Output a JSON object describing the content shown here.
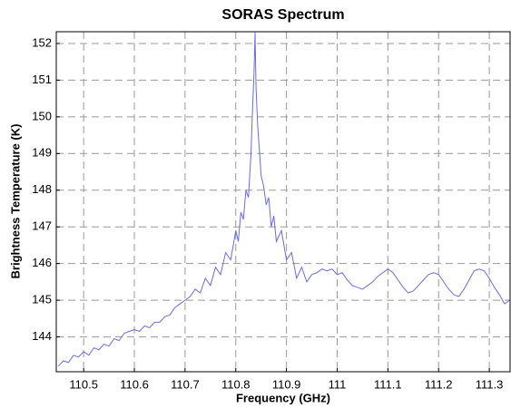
{
  "chart_data": {
    "type": "line",
    "title": "SORAS Spectrum",
    "x_label": "Frequency (GHz)",
    "y_label": "Brightness Temperature (K)",
    "x": [
      110.45,
      110.46,
      110.47,
      110.48,
      110.49,
      110.5,
      110.51,
      110.52,
      110.53,
      110.54,
      110.55,
      110.56,
      110.57,
      110.58,
      110.59,
      110.6,
      110.61,
      110.62,
      110.63,
      110.64,
      110.65,
      110.66,
      110.67,
      110.68,
      110.69,
      110.7,
      110.71,
      110.72,
      110.73,
      110.74,
      110.75,
      110.76,
      110.77,
      110.78,
      110.79,
      110.8,
      110.805,
      110.81,
      110.815,
      110.82,
      110.825,
      110.83,
      110.833,
      110.836,
      110.838,
      110.84,
      110.843,
      110.846,
      110.85,
      110.855,
      110.86,
      110.865,
      110.87,
      110.875,
      110.88,
      110.89,
      110.9,
      110.91,
      110.92,
      110.93,
      110.94,
      110.95,
      110.96,
      110.97,
      110.98,
      110.99,
      111.0,
      111.01,
      111.02,
      111.03,
      111.04,
      111.05,
      111.06,
      111.07,
      111.08,
      111.09,
      111.1,
      111.11,
      111.12,
      111.13,
      111.14,
      111.15,
      111.16,
      111.17,
      111.18,
      111.19,
      111.2,
      111.21,
      111.22,
      111.23,
      111.24,
      111.25,
      111.26,
      111.27,
      111.28,
      111.29,
      111.3,
      111.31,
      111.32,
      111.33,
      111.34
    ],
    "series": [
      {
        "name": "SORAS",
        "color": "#6b6be6",
        "values": [
          143.2,
          143.35,
          143.3,
          143.5,
          143.45,
          143.6,
          143.5,
          143.7,
          143.65,
          143.8,
          143.75,
          143.95,
          143.9,
          144.1,
          144.15,
          144.2,
          144.15,
          144.3,
          144.25,
          144.4,
          144.4,
          144.55,
          144.6,
          144.8,
          144.9,
          145.0,
          145.1,
          145.3,
          145.2,
          145.6,
          145.4,
          145.9,
          145.7,
          146.3,
          146.1,
          146.9,
          146.6,
          147.4,
          147.2,
          148.0,
          147.8,
          149.0,
          150.2,
          151.2,
          152.3,
          150.8,
          149.8,
          149.2,
          148.4,
          148.1,
          147.6,
          147.8,
          147.0,
          147.3,
          146.6,
          146.9,
          146.1,
          146.3,
          145.6,
          145.9,
          145.5,
          145.7,
          145.75,
          145.85,
          145.8,
          145.85,
          145.7,
          145.75,
          145.55,
          145.4,
          145.35,
          145.3,
          145.4,
          145.5,
          145.65,
          145.75,
          145.85,
          145.75,
          145.55,
          145.35,
          145.2,
          145.25,
          145.4,
          145.55,
          145.7,
          145.75,
          145.7,
          145.5,
          145.3,
          145.15,
          145.1,
          145.3,
          145.55,
          145.8,
          145.85,
          145.8,
          145.6,
          145.35,
          145.15,
          144.9,
          145.0
        ]
      }
    ],
    "xlim": [
      110.446,
      111.341
    ],
    "ylim": [
      143.05,
      152.32
    ],
    "xticks": [
      110.5,
      110.6,
      110.7,
      110.8,
      110.9,
      111,
      111.1,
      111.2,
      111.3
    ],
    "yticks": [
      144,
      145,
      146,
      147,
      148,
      149,
      150,
      151,
      152
    ],
    "grid": true
  }
}
